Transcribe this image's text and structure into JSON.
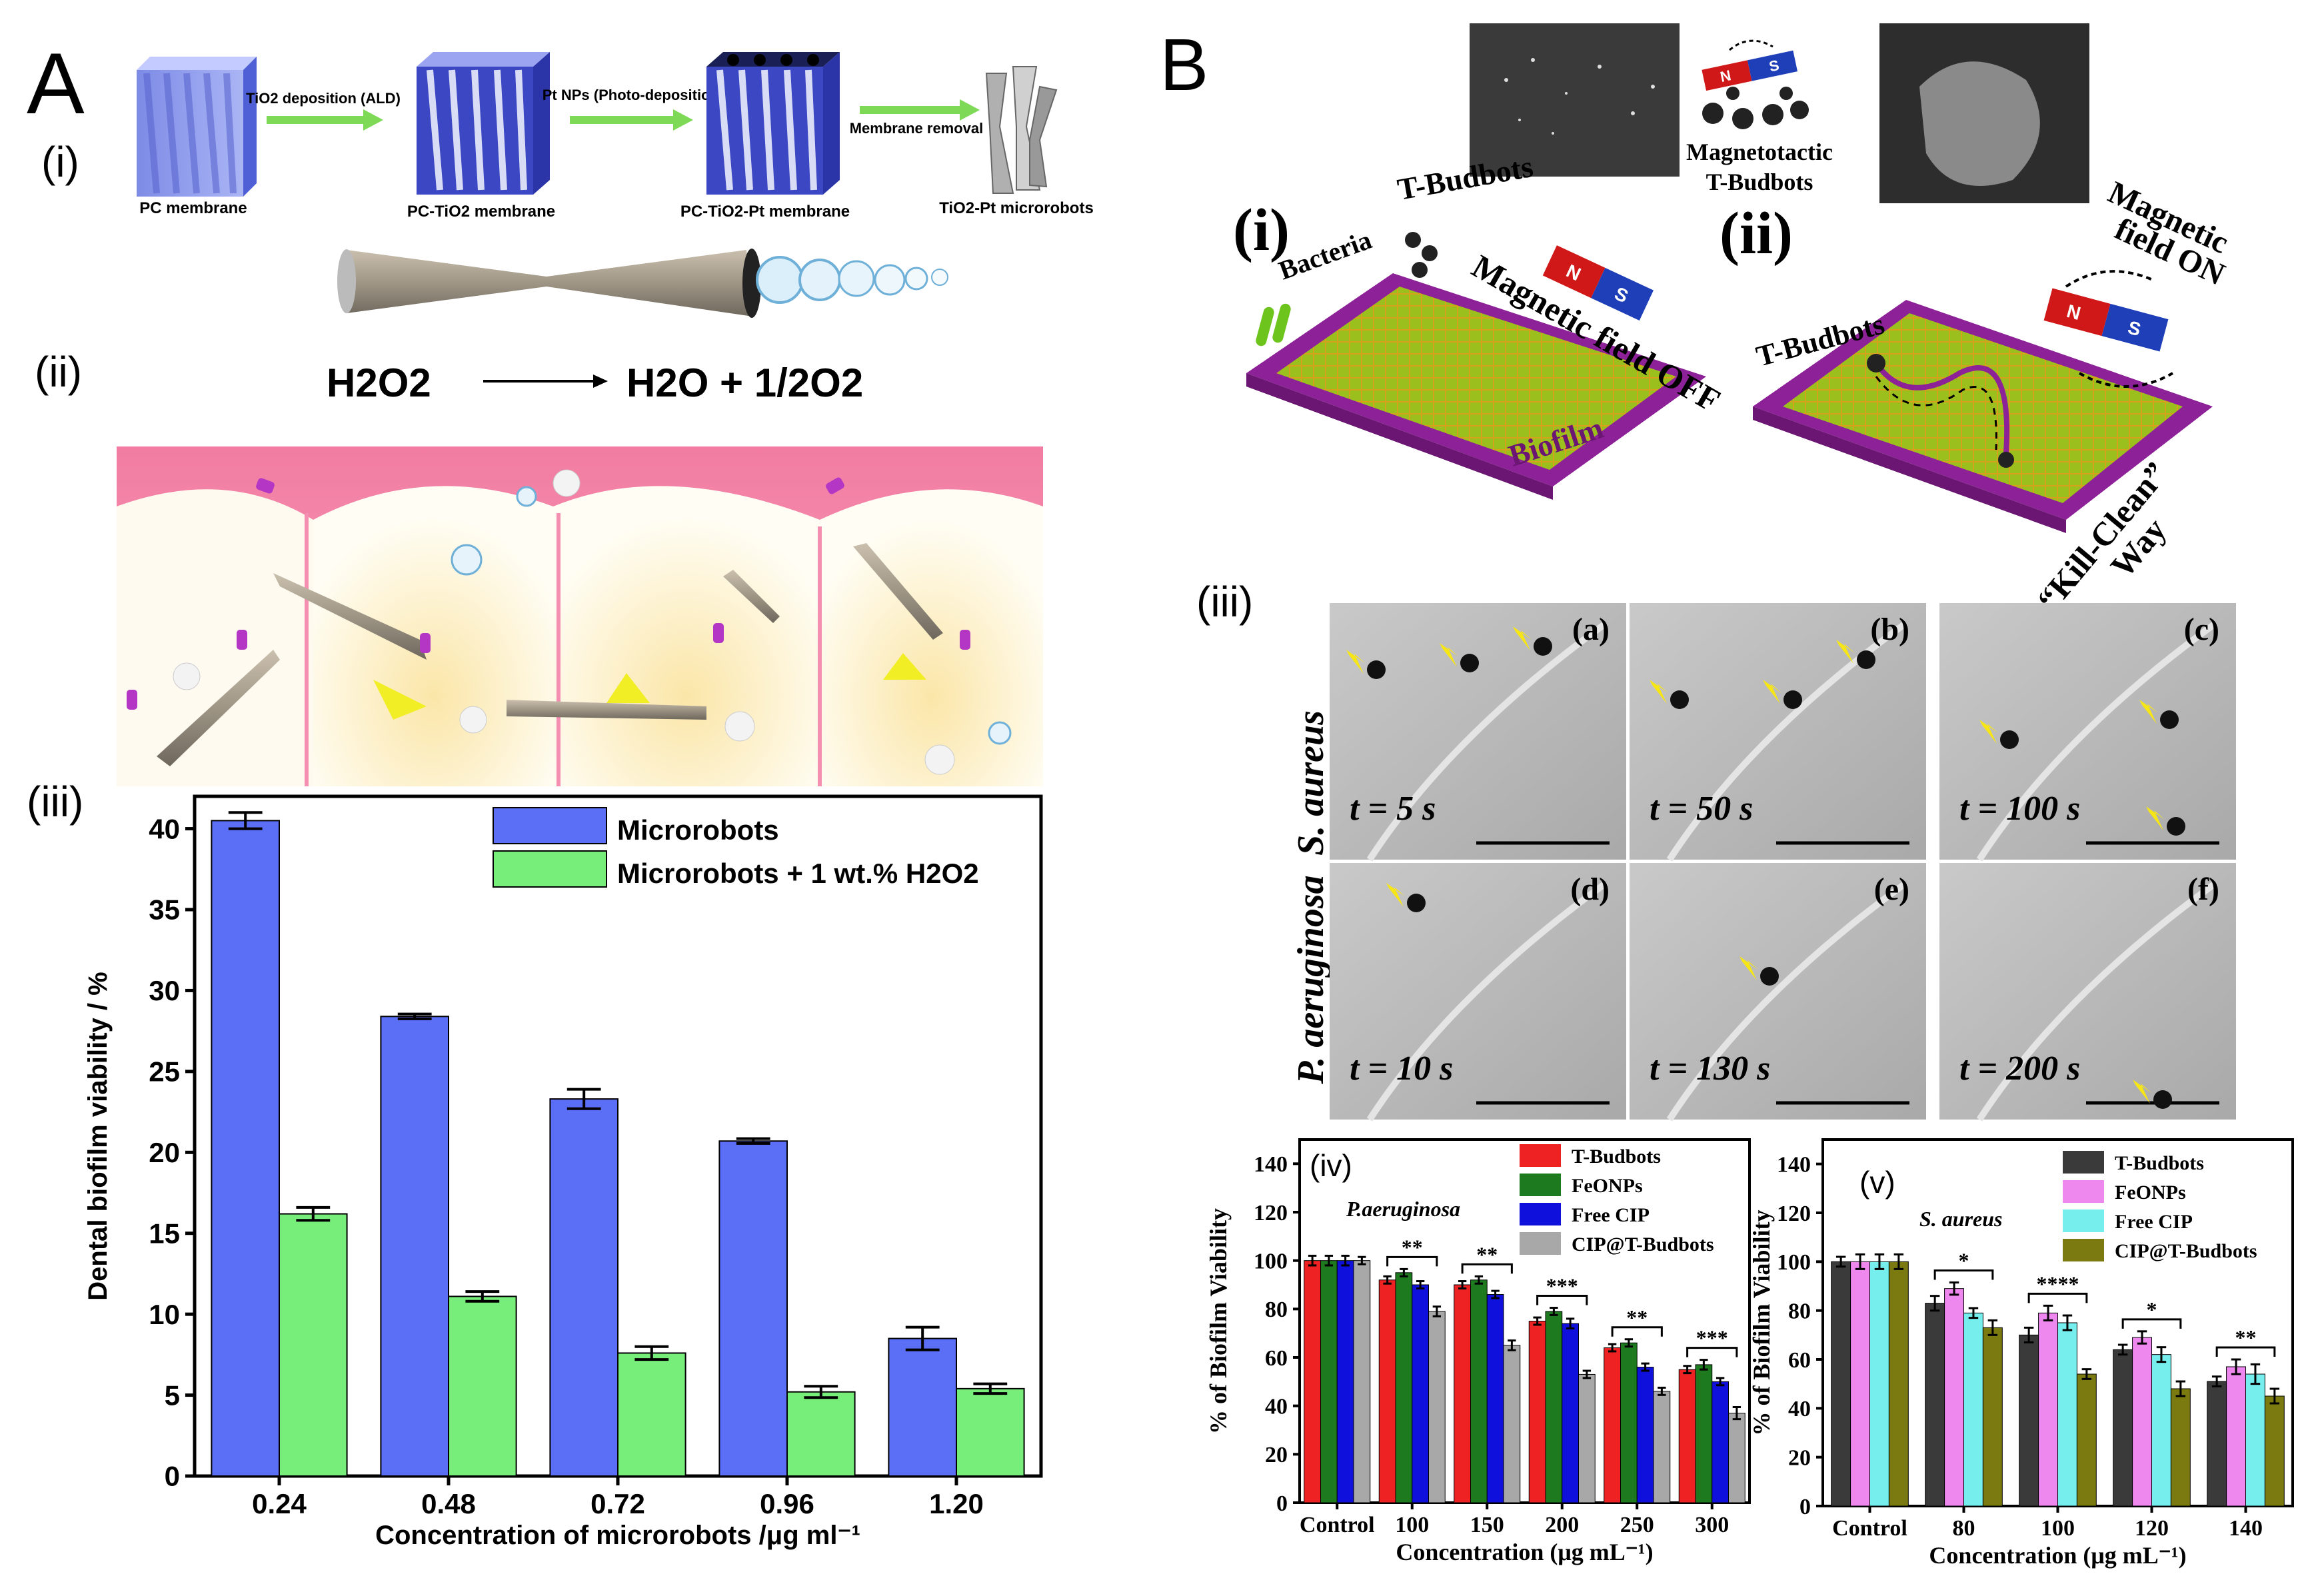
{
  "panel_A": {
    "letter": "A",
    "sub_i": "(i)",
    "sub_ii": "(ii)",
    "sub_iii": "(iii)",
    "steps": [
      "PC membrane",
      "PC-TiO2 membrane",
      "PC-TiO2-Pt membrane",
      "TiO2-Pt microrobots"
    ],
    "arrows": [
      "TiO2 deposition (ALD)",
      "Pt NPs (Photo-deposition)",
      "Membrane removal"
    ],
    "equation": {
      "left": "H2O2",
      "right": "H2O + 1/2O2"
    }
  },
  "panel_B": {
    "letter": "B",
    "sub_i": "(i)",
    "sub_ii": "(ii)",
    "sub_iii": "(iii)",
    "mag_title_1": "Magnetotactic",
    "mag_title_2": "T-Budbots",
    "labels_i": {
      "budbots": "T-Budbots",
      "bacteria": "Bacteria",
      "field": "Magnetic field OFF",
      "biofilm": "Biofilm"
    },
    "labels_ii": {
      "budbots": "T-Budbots",
      "field_1": "Magnetic",
      "field_2": "field ON",
      "kill_1": "“Kill-Clean”",
      "kill_2": "Way"
    },
    "magnet_n": "N",
    "magnet_s": "S",
    "row_labels": [
      "S. aureus",
      "P. aeruginosa"
    ],
    "frames": [
      {
        "letter": "(a)",
        "time": "t = 5 s"
      },
      {
        "letter": "(b)",
        "time": "t = 50 s"
      },
      {
        "letter": "(c)",
        "time": "t = 100 s"
      },
      {
        "letter": "(d)",
        "time": "t = 10 s"
      },
      {
        "letter": "(e)",
        "time": "t = 130 s"
      },
      {
        "letter": "(f)",
        "time": "t = 200 s"
      }
    ]
  },
  "chart_data": [
    {
      "id": "A-iii",
      "type": "bar",
      "panel_label": "(iii)",
      "categories": [
        "0.24",
        "0.48",
        "0.72",
        "0.96",
        "1.20"
      ],
      "series": [
        {
          "name": "Microrobots",
          "color": "#5b6ef6",
          "values": [
            40.5,
            28.4,
            23.3,
            20.7,
            8.5
          ],
          "errors": [
            0.5,
            0.15,
            0.6,
            0.15,
            0.7
          ]
        },
        {
          "name": "Microrobots + 1 wt.% H2O2",
          "color": "#78ee7a",
          "values": [
            16.2,
            11.1,
            7.6,
            5.2,
            5.4
          ],
          "errors": [
            0.4,
            0.3,
            0.4,
            0.35,
            0.3
          ]
        }
      ],
      "xlabel": "Concentration of microrobots /μg ml⁻¹",
      "ylabel": "Dental biofilm viability / %",
      "ylim": [
        0,
        42
      ],
      "yticks": [
        "0",
        "5",
        "10",
        "15",
        "20",
        "25",
        "30",
        "35",
        "40"
      ],
      "legend_position": "top-right"
    },
    {
      "id": "B-iv",
      "type": "bar",
      "panel_label": "(iv)",
      "annotation": "P.aeruginosa",
      "categories": [
        "Control",
        "100",
        "150",
        "200",
        "250",
        "300"
      ],
      "series": [
        {
          "name": "T-Budbots",
          "color": "#ee2222",
          "values": [
            100,
            92,
            90,
            75,
            64,
            55
          ],
          "errors": [
            2,
            1.5,
            1.5,
            1.5,
            1.5,
            1.5
          ]
        },
        {
          "name": "FeONPs",
          "color": "#1e7a1e",
          "values": [
            100,
            95,
            92,
            79,
            66,
            57
          ],
          "errors": [
            2,
            1.5,
            1.5,
            1.5,
            1.5,
            2
          ]
        },
        {
          "name": "Free CIP",
          "color": "#1010dd",
          "values": [
            100,
            90,
            86,
            74,
            56,
            50
          ],
          "errors": [
            2,
            1.5,
            1.5,
            2,
            1.5,
            1.5
          ]
        },
        {
          "name": "CIP@T-Budbots",
          "color": "#a8a8a8",
          "values": [
            100,
            79,
            65,
            53,
            46,
            37
          ],
          "errors": [
            1.5,
            2,
            2,
            1.5,
            1.5,
            2.5
          ]
        }
      ],
      "significance": [
        "",
        "**",
        "**",
        "***",
        "**",
        "***"
      ],
      "xlabel": "Concentration (μg mL⁻¹)",
      "ylabel": "% of Biofilm Viability",
      "ylim": [
        0,
        150
      ],
      "yticks": [
        "0",
        "20",
        "40",
        "60",
        "80",
        "100",
        "120",
        "140"
      ],
      "legend_position": "top-right"
    },
    {
      "id": "B-v",
      "type": "bar",
      "panel_label": "(v)",
      "annotation": "S. aureus",
      "categories": [
        "Control",
        "80",
        "100",
        "120",
        "140"
      ],
      "series": [
        {
          "name": "T-Budbots",
          "color": "#3a3a3a",
          "values": [
            100,
            83,
            70,
            64,
            51
          ],
          "errors": [
            2,
            3,
            3,
            2,
            2
          ]
        },
        {
          "name": "FeONPs",
          "color": "#ee88ee",
          "values": [
            100,
            89,
            79,
            69,
            57
          ],
          "errors": [
            3,
            2.5,
            3,
            2.5,
            3
          ]
        },
        {
          "name": "Free CIP",
          "color": "#77eeee",
          "values": [
            100,
            79,
            75,
            62,
            54
          ],
          "errors": [
            3,
            2,
            3,
            3,
            4
          ]
        },
        {
          "name": "CIP@T-Budbots",
          "color": "#7a7a10",
          "values": [
            100,
            73,
            54,
            48,
            45
          ],
          "errors": [
            3,
            3,
            2,
            3,
            3
          ]
        }
      ],
      "significance": [
        "",
        "*",
        "****",
        "*",
        "**"
      ],
      "xlabel": "Concentration (μg mL⁻¹)",
      "ylabel": "% of Biofilm Viability",
      "ylim": [
        0,
        150
      ],
      "yticks": [
        "0",
        "20",
        "40",
        "60",
        "80",
        "100",
        "120",
        "140"
      ],
      "legend_position": "top-right"
    }
  ]
}
